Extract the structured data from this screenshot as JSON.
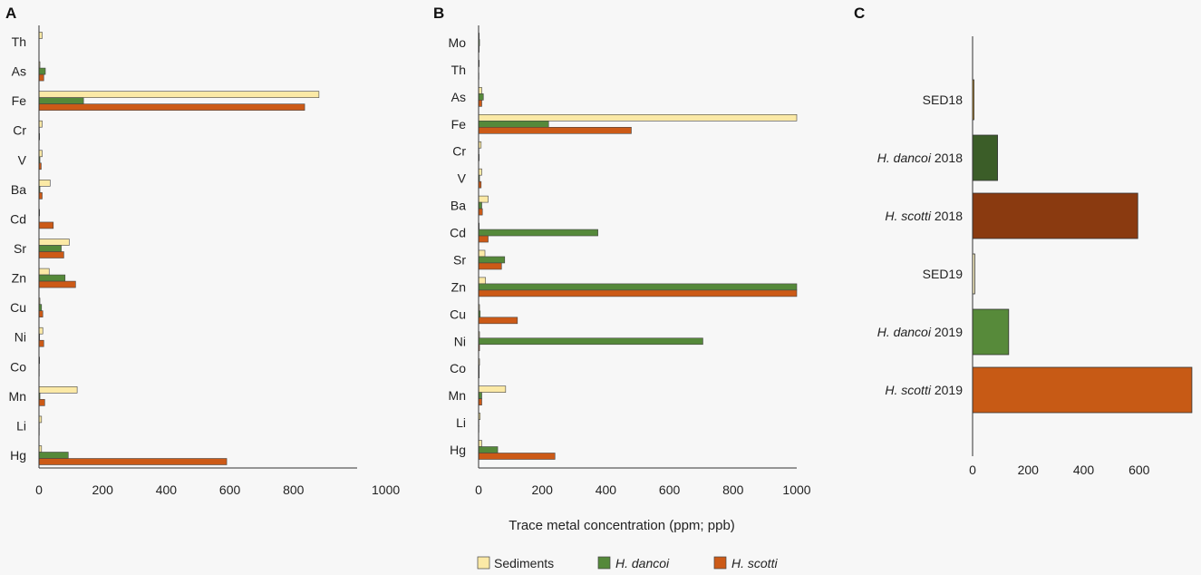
{
  "colors": {
    "sediments": "#fbe9a6",
    "h_dancoi": "#55893a",
    "h_scotti": "#cc5a17",
    "c_sed18": "#d9a22e",
    "c_dancoi18": "#3b5d28",
    "c_scotti18": "#8a3a10",
    "c_sed19": "#fbf1c4",
    "c_dancoi19": "#578a3a",
    "c_scotti19": "#c75a15"
  },
  "shared_xlabel": "Trace metal concentration (ppm; ppb)",
  "legend": [
    {
      "label": "Sediments",
      "color_key": "sediments",
      "italic": false
    },
    {
      "label": "H. dancoi",
      "color_key": "h_dancoi",
      "italic": true
    },
    {
      "label": "H. scotti",
      "color_key": "h_scotti",
      "italic": true
    }
  ],
  "chart_data": [
    {
      "id": "A",
      "type": "bar",
      "orientation": "horizontal",
      "categories": [
        "Th",
        "As",
        "Fe",
        "Cr",
        "V",
        "Ba",
        "Cd",
        "Sr",
        "Zn",
        "Cu",
        "Ni",
        "Co",
        "Mn",
        "Li",
        "Hg"
      ],
      "series": [
        {
          "name": "Sediments",
          "color_key": "sediments",
          "values": [
            10,
            3,
            880,
            10,
            10,
            35,
            2,
            95,
            32,
            3,
            12,
            2,
            120,
            8,
            8
          ]
        },
        {
          "name": "H. dancoi",
          "color_key": "h_dancoi",
          "values": [
            0,
            20,
            140,
            1,
            3,
            3,
            1,
            70,
            82,
            8,
            2,
            1,
            3,
            1,
            92
          ]
        },
        {
          "name": "H. scotti",
          "color_key": "h_scotti",
          "values": [
            0,
            15,
            835,
            2,
            7,
            10,
            45,
            78,
            115,
            12,
            15,
            1,
            18,
            1,
            590
          ]
        }
      ],
      "xlim": [
        0,
        1000
      ],
      "xticks": [
        0,
        200,
        400,
        600,
        800,
        1000
      ]
    },
    {
      "id": "B",
      "type": "bar",
      "orientation": "horizontal",
      "categories": [
        "Mo",
        "Th",
        "As",
        "Fe",
        "Cr",
        "V",
        "Ba",
        "Cd",
        "Sr",
        "Zn",
        "Cu",
        "Ni",
        "Co",
        "Mn",
        "Li",
        "Hg"
      ],
      "series": [
        {
          "name": "Sediments",
          "color_key": "sediments",
          "values": [
            2,
            2,
            10,
            1000,
            8,
            10,
            30,
            2,
            20,
            22,
            3,
            3,
            3,
            85,
            5,
            10
          ]
        },
        {
          "name": "H. dancoi",
          "color_key": "h_dancoi",
          "values": [
            3,
            0,
            15,
            220,
            1,
            3,
            10,
            375,
            82,
            1000,
            5,
            705,
            2,
            10,
            1,
            60
          ]
        },
        {
          "name": "H. scotti",
          "color_key": "h_scotti",
          "values": [
            2,
            1,
            10,
            480,
            2,
            8,
            12,
            30,
            72,
            1000,
            122,
            3,
            2,
            10,
            1,
            240
          ]
        }
      ],
      "xlim": [
        0,
        1000
      ],
      "xticks": [
        0,
        200,
        400,
        600,
        800,
        1000
      ]
    },
    {
      "id": "C",
      "type": "bar",
      "orientation": "horizontal",
      "categories": [
        {
          "italic": "",
          "text": "SED18"
        },
        {
          "italic": "H. dancoi",
          "text": " 2018"
        },
        {
          "italic": "H. scotti",
          "text": " 2018"
        },
        {
          "italic": "",
          "text": "SED19"
        },
        {
          "italic": "H. dancoi",
          "text": " 2019"
        },
        {
          "italic": "H. scotti",
          "text": " 2019"
        }
      ],
      "values": [
        5,
        90,
        595,
        8,
        130,
        790
      ],
      "color_keys": [
        "c_sed18",
        "c_dancoi18",
        "c_scotti18",
        "c_sed19",
        "c_dancoi19",
        "c_scotti19"
      ],
      "xlim": [
        0,
        800
      ],
      "xticks": [
        0,
        200,
        400,
        600
      ]
    }
  ]
}
